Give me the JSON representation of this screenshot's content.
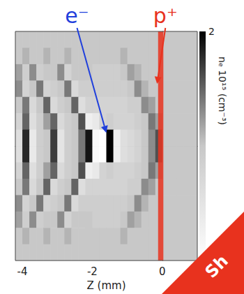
{
  "chart_data": {
    "type": "heatmap",
    "xlabel": "Z (mm)",
    "xlim": [
      -4.2,
      1.0
    ],
    "xticks": [
      -4,
      -2,
      0
    ],
    "ylim": [
      -3.5,
      3.5
    ],
    "tick_labels": "x",
    "grid": false,
    "cells": {
      "x": [
        -4.1,
        -3.9,
        -3.7,
        -3.5,
        -3.3,
        -3.1,
        -2.9,
        -2.7,
        -2.5,
        -2.3,
        -2.1,
        -1.9,
        -1.7,
        -1.5,
        -1.3,
        -1.1,
        -0.9,
        -0.7,
        -0.5,
        -0.3,
        -0.1,
        0.1,
        0.3,
        0.5,
        0.7,
        0.9
      ],
      "y": [
        3.25,
        2.75,
        2.25,
        1.75,
        1.25,
        0.75,
        0.25,
        -0.25,
        -0.75,
        -1.25,
        -1.75,
        -2.25,
        -2.75,
        -3.25
      ],
      "values": [
        [
          1.0,
          1.0,
          1.0,
          1.0,
          1.0,
          1.0,
          1.0,
          1.0,
          1.0,
          1.0,
          1.0,
          1.0,
          1.0,
          1.0,
          1.0,
          1.0,
          1.0,
          1.0,
          1.0,
          1.0,
          1.0,
          1.0,
          1.0,
          1.0,
          1.0,
          1.0
        ],
        [
          1.0,
          1.1,
          1.0,
          1.0,
          1.1,
          1.0,
          1.0,
          1.1,
          1.0,
          1.0,
          1.0,
          1.0,
          1.0,
          1.0,
          1.0,
          1.1,
          1.0,
          1.0,
          1.0,
          1.0,
          1.0,
          1.0,
          1.0,
          1.0,
          1.0,
          1.0
        ],
        [
          1.2,
          0.9,
          1.3,
          0.9,
          1.0,
          1.0,
          1.3,
          0.8,
          1.0,
          1.0,
          1.0,
          0.9,
          0.9,
          0.9,
          0.9,
          1.0,
          1.2,
          1.1,
          1.0,
          1.0,
          1.0,
          1.0,
          1.0,
          1.0,
          1.0,
          1.0
        ],
        [
          1.3,
          0.8,
          1.0,
          1.4,
          0.8,
          0.9,
          1.0,
          1.4,
          0.7,
          0.9,
          0.9,
          0.9,
          0.9,
          0.9,
          0.9,
          0.9,
          1.0,
          1.3,
          1.1,
          1.0,
          1.0,
          1.0,
          1.0,
          1.0,
          1.0,
          1.0
        ],
        [
          1.0,
          1.4,
          0.7,
          1.0,
          1.5,
          0.7,
          0.9,
          1.0,
          1.5,
          0.6,
          0.8,
          0.8,
          0.8,
          0.8,
          0.8,
          0.8,
          0.9,
          0.9,
          1.3,
          1.2,
          1.0,
          1.0,
          1.0,
          1.0,
          1.0,
          1.0
        ],
        [
          0.8,
          1.5,
          0.6,
          0.9,
          1.2,
          1.5,
          0.7,
          0.9,
          1.0,
          1.6,
          0.3,
          0.4,
          0.8,
          0.9,
          0.8,
          0.8,
          0.8,
          0.9,
          1.0,
          1.4,
          1.2,
          1.0,
          1.0,
          1.0,
          1.0,
          1.0
        ],
        [
          0.6,
          1.8,
          0.4,
          0.9,
          1.0,
          1.7,
          0.5,
          0.9,
          1.0,
          1.4,
          1.9,
          0.1,
          0.0,
          2.0,
          0.3,
          0.6,
          0.7,
          0.8,
          1.0,
          1.3,
          1.6,
          1.0,
          1.0,
          1.0,
          1.0,
          1.0
        ],
        [
          0.6,
          1.8,
          0.4,
          0.9,
          1.0,
          1.7,
          0.5,
          0.9,
          1.0,
          1.4,
          1.9,
          0.1,
          0.0,
          2.0,
          0.3,
          0.6,
          0.7,
          0.8,
          1.0,
          1.3,
          1.6,
          1.0,
          1.0,
          1.0,
          1.0,
          1.0
        ],
        [
          0.8,
          1.5,
          0.6,
          0.9,
          1.2,
          1.5,
          0.7,
          0.9,
          1.0,
          1.6,
          0.3,
          0.4,
          0.8,
          0.9,
          0.8,
          0.8,
          0.8,
          0.9,
          1.0,
          1.4,
          1.2,
          1.0,
          1.0,
          1.0,
          1.0,
          1.0
        ],
        [
          1.0,
          1.4,
          0.7,
          1.0,
          1.5,
          0.7,
          0.9,
          1.0,
          1.5,
          0.6,
          0.8,
          0.8,
          0.8,
          0.8,
          0.8,
          0.8,
          0.9,
          0.9,
          1.3,
          1.2,
          1.0,
          1.0,
          1.0,
          1.0,
          1.0,
          1.0
        ],
        [
          1.3,
          0.8,
          1.0,
          1.4,
          0.8,
          0.9,
          1.0,
          1.4,
          0.7,
          0.9,
          0.9,
          0.9,
          0.9,
          0.9,
          0.9,
          0.9,
          1.0,
          1.3,
          1.1,
          1.0,
          1.0,
          1.0,
          1.0,
          1.0,
          1.0,
          1.0
        ],
        [
          1.2,
          0.9,
          1.3,
          0.9,
          1.0,
          1.0,
          1.3,
          0.8,
          1.0,
          1.0,
          1.0,
          0.9,
          0.9,
          0.9,
          0.9,
          1.0,
          1.2,
          1.1,
          1.0,
          1.0,
          1.0,
          1.0,
          1.0,
          1.0,
          1.0,
          1.0
        ],
        [
          1.0,
          1.1,
          1.0,
          1.0,
          1.1,
          1.0,
          1.0,
          1.1,
          1.0,
          1.0,
          1.0,
          1.0,
          1.0,
          1.0,
          1.0,
          1.1,
          1.0,
          1.0,
          1.0,
          1.0,
          1.0,
          1.0,
          1.0,
          1.0,
          1.0,
          1.0
        ],
        [
          1.0,
          1.0,
          1.0,
          1.0,
          1.0,
          1.0,
          1.0,
          1.0,
          1.0,
          1.0,
          1.0,
          1.0,
          1.0,
          1.0,
          1.0,
          1.0,
          1.0,
          1.0,
          1.0,
          1.0,
          1.0,
          1.0,
          1.0,
          1.0,
          1.0,
          1.0
        ]
      ]
    },
    "colorbar": {
      "label": "nₑ 10¹⁵ (cm⁻³)",
      "range": [
        0,
        2
      ],
      "ticks": [
        2
      ]
    },
    "band": {
      "z": [
        -0.12,
        0.03
      ],
      "color": "#e8321e"
    },
    "annotations": [
      {
        "text": "e⁻",
        "color": "#1f3fdc",
        "z": -1.6,
        "y": 0.4
      },
      {
        "text": "p⁺",
        "color": "#e8321e",
        "z": -0.15,
        "y": 1.9
      }
    ],
    "ribbon": {
      "text": "Sh",
      "color": "#e8321e"
    }
  }
}
